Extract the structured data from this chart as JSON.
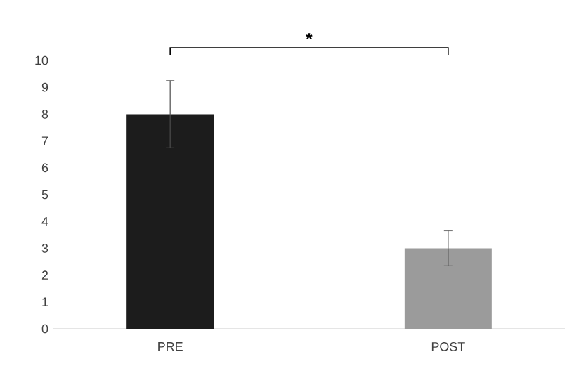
{
  "chart_data": {
    "type": "bar",
    "categories": [
      "PRE",
      "POST"
    ],
    "values": [
      8,
      3
    ],
    "colors": [
      "#1c1c1c",
      "#9b9b9b"
    ],
    "errors": [
      1.25,
      0.65
    ],
    "ylim": [
      0,
      10
    ],
    "yticks": [
      0,
      1,
      2,
      3,
      4,
      5,
      6,
      7,
      8,
      9,
      10
    ],
    "annotations": [
      "*"
    ]
  }
}
